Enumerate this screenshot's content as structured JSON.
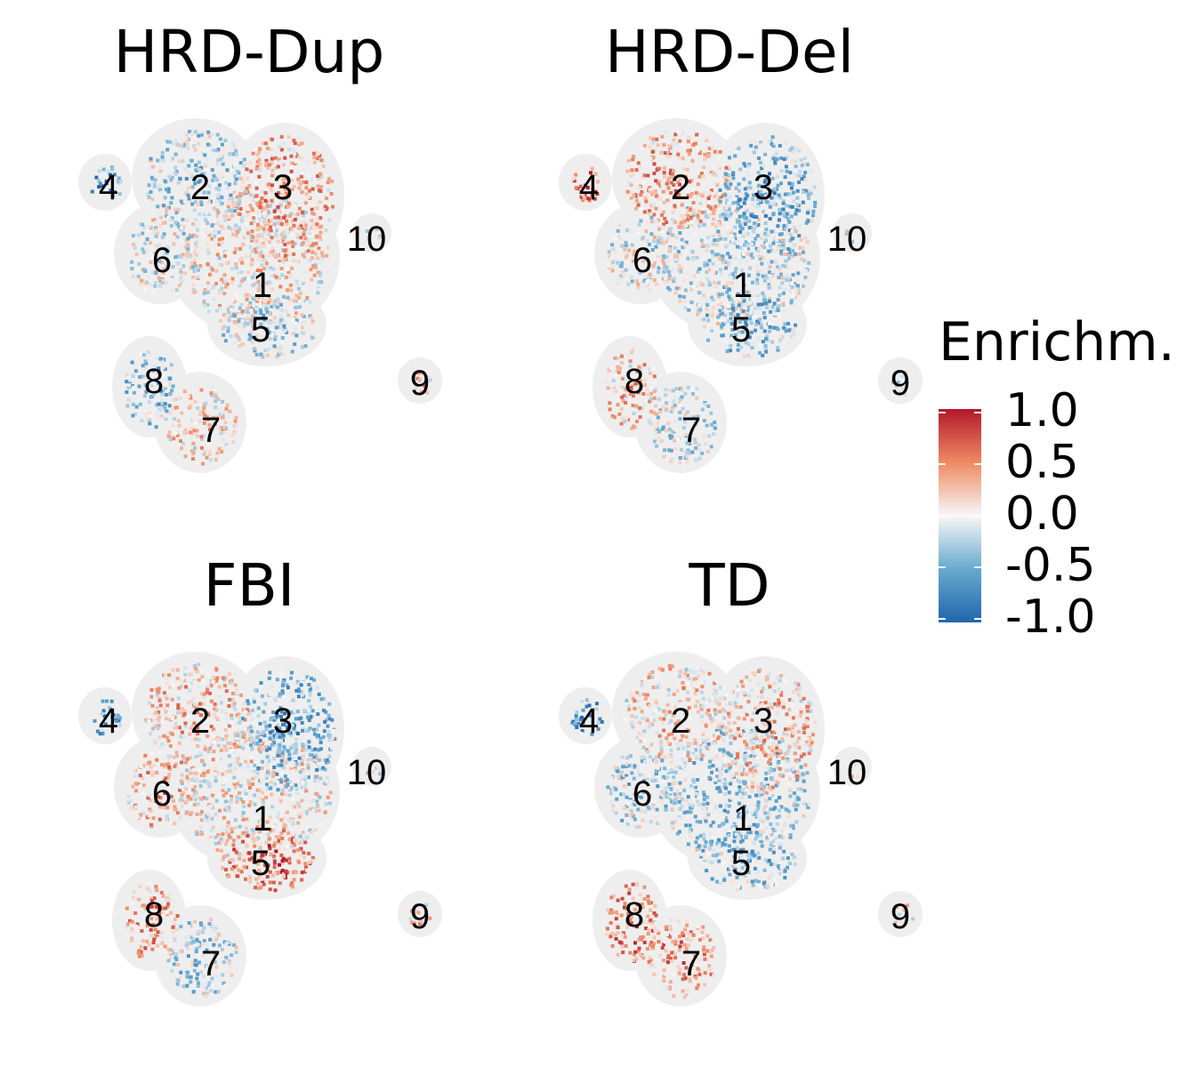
{
  "chart_data": {
    "type": "heatmap",
    "subtype": "umap-enrichment-facets",
    "panels": [
      {
        "title": "HRD-Dup",
        "clusters": [
          {
            "label": "1",
            "enrichment": 0.15
          },
          {
            "label": "2",
            "enrichment": -0.3
          },
          {
            "label": "3",
            "enrichment": 0.45
          },
          {
            "label": "4",
            "enrichment": -0.85
          },
          {
            "label": "5",
            "enrichment": -0.25
          },
          {
            "label": "6",
            "enrichment": -0.1
          },
          {
            "label": "7",
            "enrichment": 0.2
          },
          {
            "label": "8",
            "enrichment": -0.45
          },
          {
            "label": "9",
            "enrichment": 0.3
          },
          {
            "label": "10",
            "enrichment": -0.3
          }
        ]
      },
      {
        "title": "HRD-Del",
        "clusters": [
          {
            "label": "1",
            "enrichment": -0.2
          },
          {
            "label": "2",
            "enrichment": 0.45
          },
          {
            "label": "3",
            "enrichment": -0.55
          },
          {
            "label": "4",
            "enrichment": 0.9
          },
          {
            "label": "5",
            "enrichment": -0.5
          },
          {
            "label": "6",
            "enrichment": -0.1
          },
          {
            "label": "7",
            "enrichment": -0.2
          },
          {
            "label": "8",
            "enrichment": 0.3
          },
          {
            "label": "9",
            "enrichment": -0.3
          },
          {
            "label": "10",
            "enrichment": 0.1
          }
        ]
      },
      {
        "title": "FBI",
        "clusters": [
          {
            "label": "1",
            "enrichment": 0.1
          },
          {
            "label": "2",
            "enrichment": 0.3
          },
          {
            "label": "3",
            "enrichment": -0.6
          },
          {
            "label": "4",
            "enrichment": -0.8
          },
          {
            "label": "5",
            "enrichment": 0.75
          },
          {
            "label": "6",
            "enrichment": 0.4
          },
          {
            "label": "7",
            "enrichment": -0.3
          },
          {
            "label": "8",
            "enrichment": 0.5
          },
          {
            "label": "9",
            "enrichment": 0.3
          },
          {
            "label": "10",
            "enrichment": -0.2
          }
        ]
      },
      {
        "title": "TD",
        "clusters": [
          {
            "label": "1",
            "enrichment": -0.35
          },
          {
            "label": "2",
            "enrichment": 0.2
          },
          {
            "label": "3",
            "enrichment": 0.3
          },
          {
            "label": "4",
            "enrichment": -0.85
          },
          {
            "label": "5",
            "enrichment": -0.45
          },
          {
            "label": "6",
            "enrichment": -0.3
          },
          {
            "label": "7",
            "enrichment": 0.55
          },
          {
            "label": "8",
            "enrichment": 0.7
          },
          {
            "label": "9",
            "enrichment": 0.1
          },
          {
            "label": "10",
            "enrichment": 0.0
          }
        ]
      }
    ],
    "legend": {
      "title": "Enrichm.",
      "ticks": [
        "1.0",
        "0.5",
        "0.0",
        "-0.5",
        "-1.0"
      ],
      "range": [
        -1.0,
        1.0
      ],
      "colors": {
        "high": "#b2182b",
        "mid_high": "#ef8a62",
        "mid": "#f7f7f7",
        "mid_low": "#67a9cf",
        "low": "#2166ac"
      },
      "placement": "right"
    }
  }
}
